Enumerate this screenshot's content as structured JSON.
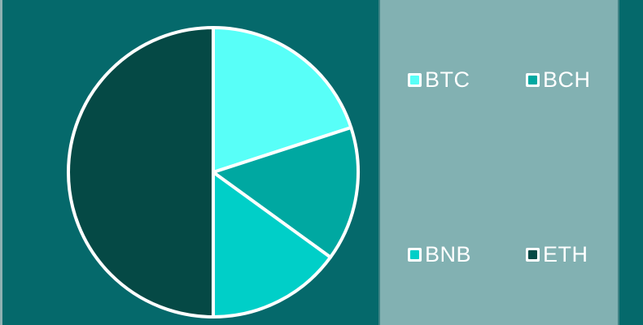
{
  "chart_data": {
    "type": "pie",
    "labels": [
      "BTC",
      "BCH",
      "BNB",
      "ETH"
    ],
    "values": [
      20,
      15,
      15,
      50
    ],
    "unit": "percent_share",
    "start_angle_deg": 0,
    "direction": "clockwise",
    "colors": [
      "#58FFF8",
      "#00A8A1",
      "#00CFC8",
      "#054945"
    ],
    "slice_stroke_color": "#FFFFFF",
    "title": "",
    "legend_position": "right"
  },
  "legend": {
    "items": [
      {
        "label": "BTC",
        "swatch_color": "#58FFF8"
      },
      {
        "label": "BCH",
        "swatch_color": "#00A8A1"
      },
      {
        "label": "BNB",
        "swatch_color": "#00CFC8"
      },
      {
        "label": "ETH",
        "swatch_color": "#054945"
      }
    ]
  },
  "colors": {
    "background": "#05696B",
    "legend_panel": "#82B1B2",
    "panel_edge": "#3F8385",
    "left_strip": "#8FB1B2",
    "legend_text": "#FFFFFF",
    "stroke": "#FFFFFF"
  }
}
